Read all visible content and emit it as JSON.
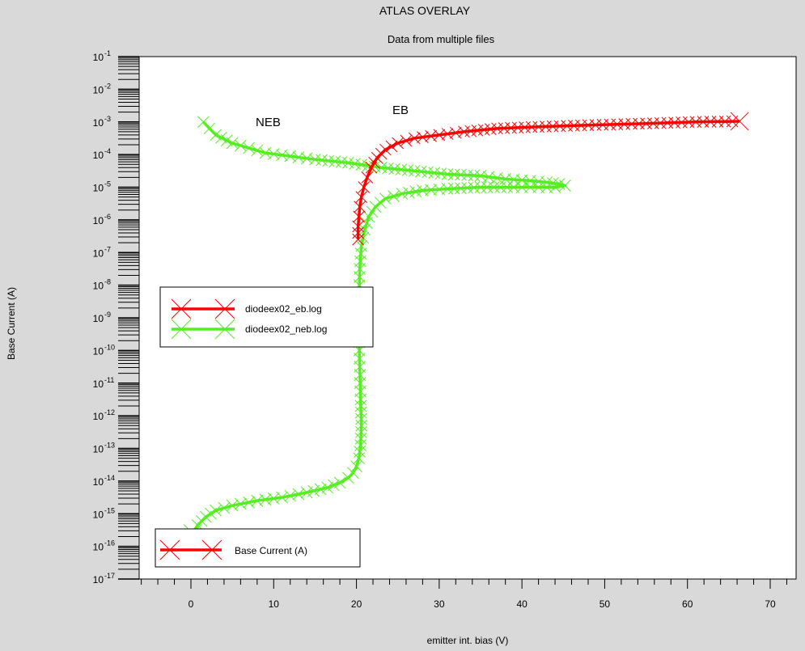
{
  "chart_data": {
    "type": "line",
    "title": "ATLAS OVERLAY",
    "subtitle": "Data from multiple files",
    "xlabel": "emitter int. bias (V)",
    "ylabel": "Base Current (A)",
    "xlim": [
      -8,
      73
    ],
    "ylim_exp": [
      -17,
      -1
    ],
    "y_scale": "log",
    "x_ticks": [
      "0",
      "10",
      "20",
      "30",
      "40",
      "50",
      "60",
      "70"
    ],
    "y_tick_exponents": [
      "-1",
      "-2",
      "-3",
      "-4",
      "-5",
      "-6",
      "-7",
      "-8",
      "-9",
      "-10",
      "-11",
      "-12",
      "-13",
      "-14",
      "-15",
      "-16",
      "-17"
    ],
    "annotations": [
      {
        "text": "NEB",
        "x": 9.5,
        "y_exp": -3.0
      },
      {
        "text": "EB",
        "x": 25.5,
        "y_exp": -2.7
      }
    ],
    "legend": {
      "placement": "middle-left",
      "entries": [
        "diodeex02_eb.log",
        "diodeex02_neb.log"
      ]
    },
    "legend2": {
      "placement": "bottom-left",
      "entries": [
        "Base Current (A)"
      ]
    },
    "series": [
      {
        "name": "diodeex02_eb.log",
        "color": "#ff0000",
        "x": [
          20.2,
          20.2,
          20.3,
          20.4,
          20.6,
          20.9,
          21.3,
          21.8,
          22.5,
          23.5,
          25,
          27,
          30,
          33,
          37,
          42,
          48,
          55,
          61,
          66.3
        ],
        "y_exp": [
          -6.6,
          -6.2,
          -5.9,
          -5.6,
          -5.3,
          -5.0,
          -4.7,
          -4.4,
          -4.1,
          -3.85,
          -3.65,
          -3.5,
          -3.4,
          -3.3,
          -3.2,
          -3.15,
          -3.1,
          -3.05,
          -3.0,
          -2.98
        ]
      },
      {
        "name": "diodeex02_neb.log",
        "color": "#55ee22",
        "x": [
          1.5,
          3,
          5,
          7,
          9,
          12,
          15,
          19,
          23,
          27,
          31,
          35,
          38,
          41,
          43,
          44.5,
          45.2,
          44,
          42,
          39,
          35,
          31,
          28,
          25.5,
          23.5,
          22.3,
          21.5,
          21,
          20.6,
          20.4,
          20.3,
          20.3,
          20.4,
          20.5,
          20.6,
          20.5,
          20.3,
          20.0,
          19.6,
          19,
          18,
          16.5,
          14,
          11,
          8,
          5,
          3,
          1.8,
          0.8,
          0.2
        ],
        "y_exp": [
          -3.0,
          -3.4,
          -3.65,
          -3.8,
          -3.95,
          -4.05,
          -4.15,
          -4.25,
          -4.4,
          -4.5,
          -4.6,
          -4.65,
          -4.75,
          -4.8,
          -4.85,
          -4.9,
          -4.95,
          -5.0,
          -5.0,
          -5.0,
          -5.0,
          -5.05,
          -5.1,
          -5.2,
          -5.35,
          -5.6,
          -5.9,
          -6.3,
          -6.8,
          -7.5,
          -8.5,
          -9.5,
          -10.5,
          -11.5,
          -12.3,
          -12.9,
          -13.3,
          -13.55,
          -13.75,
          -13.9,
          -14.05,
          -14.2,
          -14.35,
          -14.5,
          -14.6,
          -14.75,
          -14.9,
          -15.1,
          -15.35,
          -15.6
        ]
      }
    ]
  }
}
